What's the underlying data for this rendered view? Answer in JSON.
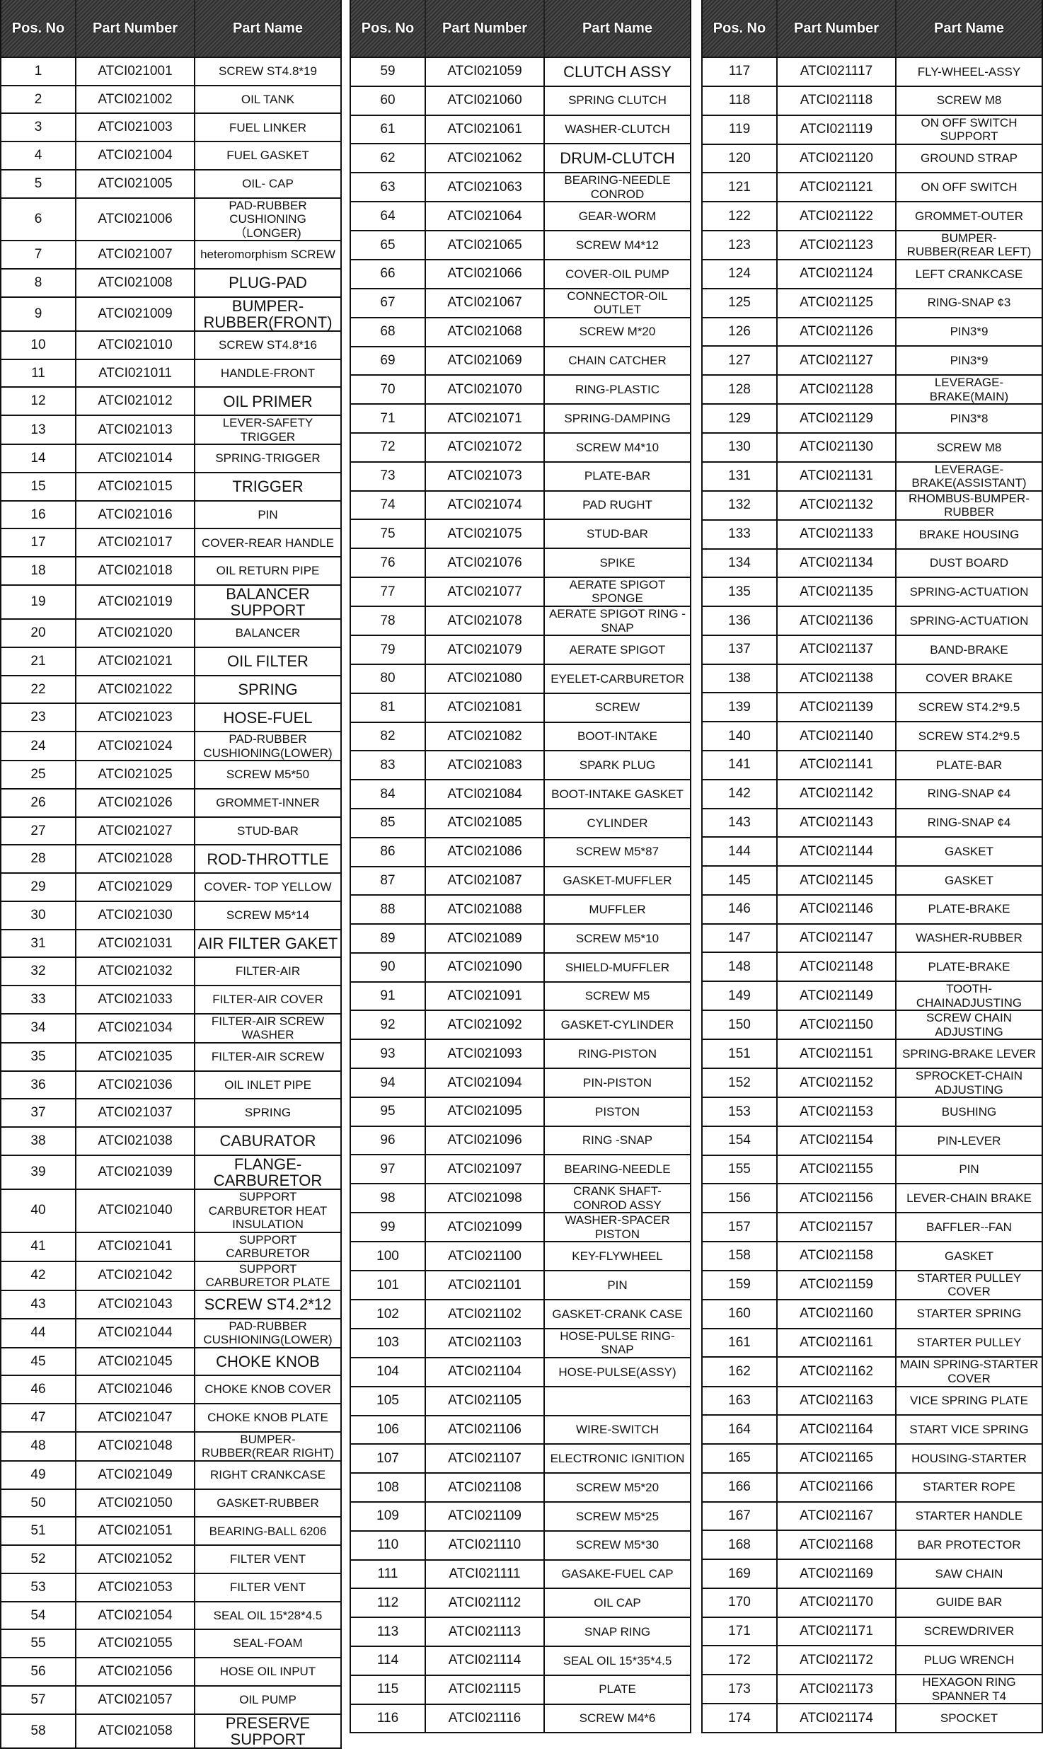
{
  "headers": {
    "pos": "Pos. No",
    "number": "Part Number",
    "name": "Part Name"
  },
  "tables": [
    {
      "rows": [
        [
          "1",
          "ATCI021001",
          "SCREW ST4.8*19"
        ],
        [
          "2",
          "ATCI021002",
          "OIL TANK"
        ],
        [
          "3",
          "ATCI021003",
          "FUEL LINKER"
        ],
        [
          "4",
          "ATCI021004",
          "FUEL GASKET"
        ],
        [
          "5",
          "ATCI021005",
          "OIL- CAP"
        ],
        [
          "6",
          "ATCI021006",
          "PAD-RUBBER CUSHIONING（LONGER)"
        ],
        [
          "7",
          "ATCI021007",
          "heteromorphism SCREW"
        ],
        [
          "8",
          "ATCI021008",
          "PLUG-PAD"
        ],
        [
          "9",
          "ATCI021009",
          "BUMPER-RUBBER(FRONT)"
        ],
        [
          "10",
          "ATCI021010",
          "SCREW ST4.8*16"
        ],
        [
          "11",
          "ATCI021011",
          "HANDLE-FRONT"
        ],
        [
          "12",
          "ATCI021012",
          "OIL PRIMER"
        ],
        [
          "13",
          "ATCI021013",
          "LEVER-SAFETY TRIGGER"
        ],
        [
          "14",
          "ATCI021014",
          "SPRING-TRIGGER"
        ],
        [
          "15",
          "ATCI021015",
          "TRIGGER"
        ],
        [
          "16",
          "ATCI021016",
          "PIN"
        ],
        [
          "17",
          "ATCI021017",
          "COVER-REAR HANDLE"
        ],
        [
          "18",
          "ATCI021018",
          "OIL RETURN PIPE"
        ],
        [
          "19",
          "ATCI021019",
          "BALANCER SUPPORT"
        ],
        [
          "20",
          "ATCI021020",
          "BALANCER"
        ],
        [
          "21",
          "ATCI021021",
          "OIL FILTER"
        ],
        [
          "22",
          "ATCI021022",
          "SPRING"
        ],
        [
          "23",
          "ATCI021023",
          "HOSE-FUEL"
        ],
        [
          "24",
          "ATCI021024",
          "PAD-RUBBER CUSHIONING(LOWER)"
        ],
        [
          "25",
          "ATCI021025",
          "SCREW M5*50"
        ],
        [
          "26",
          "ATCI021026",
          "GROMMET-INNER"
        ],
        [
          "27",
          "ATCI021027",
          "STUD-BAR"
        ],
        [
          "28",
          "ATCI021028",
          "ROD-THROTTLE"
        ],
        [
          "29",
          "ATCI021029",
          "COVER- TOP YELLOW"
        ],
        [
          "30",
          "ATCI021030",
          "SCREW M5*14"
        ],
        [
          "31",
          "ATCI021031",
          "AIR FILTER GAKET"
        ],
        [
          "32",
          "ATCI021032",
          "FILTER-AIR"
        ],
        [
          "33",
          "ATCI021033",
          "FILTER-AIR COVER"
        ],
        [
          "34",
          "ATCI021034",
          "FILTER-AIR SCREW WASHER"
        ],
        [
          "35",
          "ATCI021035",
          "FILTER-AIR SCREW"
        ],
        [
          "36",
          "ATCI021036",
          "OIL INLET PIPE"
        ],
        [
          "37",
          "ATCI021037",
          "SPRING"
        ],
        [
          "38",
          "ATCI021038",
          "CABURATOR"
        ],
        [
          "39",
          "ATCI021039",
          "FLANGE-CARBURETOR"
        ],
        [
          "40",
          "ATCI021040",
          "SUPPORT CARBURETOR HEAT INSULATION"
        ],
        [
          "41",
          "ATCI021041",
          "SUPPORT CARBURETOR"
        ],
        [
          "42",
          "ATCI021042",
          "SUPPORT CARBURETOR PLATE"
        ],
        [
          "43",
          "ATCI021043",
          "SCREW ST4.2*12"
        ],
        [
          "44",
          "ATCI021044",
          "PAD-RUBBER CUSHIONING(LOWER)"
        ],
        [
          "45",
          "ATCI021045",
          "CHOKE KNOB"
        ],
        [
          "46",
          "ATCI021046",
          "CHOKE KNOB COVER"
        ],
        [
          "47",
          "ATCI021047",
          "CHOKE KNOB PLATE"
        ],
        [
          "48",
          "ATCI021048",
          "BUMPER-RUBBER(REAR RIGHT)"
        ],
        [
          "49",
          "ATCI021049",
          "RIGHT CRANKCASE"
        ],
        [
          "50",
          "ATCI021050",
          "GASKET-RUBBER"
        ],
        [
          "51",
          "ATCI021051",
          "BEARING-BALL 6206"
        ],
        [
          "52",
          "ATCI021052",
          "FILTER VENT"
        ],
        [
          "53",
          "ATCI021053",
          "FILTER VENT"
        ],
        [
          "54",
          "ATCI021054",
          "SEAL OIL 15*28*4.5"
        ],
        [
          "55",
          "ATCI021055",
          "SEAL-FOAM"
        ],
        [
          "56",
          "ATCI021056",
          "HOSE OIL INPUT"
        ],
        [
          "57",
          "ATCI021057",
          "OIL PUMP"
        ],
        [
          "58",
          "ATCI021058",
          "PRESERVE SUPPORT"
        ]
      ]
    },
    {
      "rows": [
        [
          "59",
          "ATCI021059",
          "CLUTCH ASSY"
        ],
        [
          "60",
          "ATCI021060",
          "SPRING CLUTCH"
        ],
        [
          "61",
          "ATCI021061",
          "WASHER-CLUTCH"
        ],
        [
          "62",
          "ATCI021062",
          "DRUM-CLUTCH"
        ],
        [
          "63",
          "ATCI021063",
          "BEARING-NEEDLE CONROD"
        ],
        [
          "64",
          "ATCI021064",
          "GEAR-WORM"
        ],
        [
          "65",
          "ATCI021065",
          "SCREW M4*12"
        ],
        [
          "66",
          "ATCI021066",
          "COVER-OIL PUMP"
        ],
        [
          "67",
          "ATCI021067",
          "CONNECTOR-OIL OUTLET"
        ],
        [
          "68",
          "ATCI021068",
          "SCREW M*20"
        ],
        [
          "69",
          "ATCI021069",
          "CHAIN CATCHER"
        ],
        [
          "70",
          "ATCI021070",
          "RING-PLASTIC"
        ],
        [
          "71",
          "ATCI021071",
          "SPRING-DAMPING"
        ],
        [
          "72",
          "ATCI021072",
          "SCREW M4*10"
        ],
        [
          "73",
          "ATCI021073",
          "PLATE-BAR"
        ],
        [
          "74",
          "ATCI021074",
          "PAD RUGHT"
        ],
        [
          "75",
          "ATCI021075",
          "STUD-BAR"
        ],
        [
          "76",
          "ATCI021076",
          "SPIKE"
        ],
        [
          "77",
          "ATCI021077",
          "AERATE SPIGOT SPONGE"
        ],
        [
          "78",
          "ATCI021078",
          "AERATE SPIGOT RING -SNAP"
        ],
        [
          "79",
          "ATCI021079",
          "AERATE SPIGOT"
        ],
        [
          "80",
          "ATCI021080",
          "EYELET-CARBURETOR"
        ],
        [
          "81",
          "ATCI021081",
          "SCREW"
        ],
        [
          "82",
          "ATCI021082",
          "BOOT-INTAKE"
        ],
        [
          "83",
          "ATCI021083",
          "SPARK PLUG"
        ],
        [
          "84",
          "ATCI021084",
          "BOOT-INTAKE GASKET"
        ],
        [
          "85",
          "ATCI021085",
          "CYLINDER"
        ],
        [
          "86",
          "ATCI021086",
          "SCREW M5*87"
        ],
        [
          "87",
          "ATCI021087",
          "GASKET-MUFFLER"
        ],
        [
          "88",
          "ATCI021088",
          "MUFFLER"
        ],
        [
          "89",
          "ATCI021089",
          "SCREW M5*10"
        ],
        [
          "90",
          "ATCI021090",
          "SHIELD-MUFFLER"
        ],
        [
          "91",
          "ATCI021091",
          "SCREW M5"
        ],
        [
          "92",
          "ATCI021092",
          "GASKET-CYLINDER"
        ],
        [
          "93",
          "ATCI021093",
          "RING-PISTON"
        ],
        [
          "94",
          "ATCI021094",
          "PIN-PISTON"
        ],
        [
          "95",
          "ATCI021095",
          "PISTON"
        ],
        [
          "96",
          "ATCI021096",
          "RING -SNAP"
        ],
        [
          "97",
          "ATCI021097",
          "BEARING-NEEDLE"
        ],
        [
          "98",
          "ATCI021098",
          "CRANK SHAFT-CONROD ASSY"
        ],
        [
          "99",
          "ATCI021099",
          "WASHER-SPACER PISTON"
        ],
        [
          "100",
          "ATCI021100",
          "KEY-FLYWHEEL"
        ],
        [
          "101",
          "ATCI021101",
          "PIN"
        ],
        [
          "102",
          "ATCI021102",
          "GASKET-CRANK CASE"
        ],
        [
          "103",
          "ATCI021103",
          "HOSE-PULSE RING-SNAP"
        ],
        [
          "104",
          "ATCI021104",
          "HOSE-PULSE(ASSY)"
        ],
        [
          "105",
          "ATCI021105",
          ""
        ],
        [
          "106",
          "ATCI021106",
          "WIRE-SWITCH"
        ],
        [
          "107",
          "ATCI021107",
          "ELECTRONIC IGNITION"
        ],
        [
          "108",
          "ATCI021108",
          "SCREW M5*20"
        ],
        [
          "109",
          "ATCI021109",
          "SCREW M5*25"
        ],
        [
          "110",
          "ATCI021110",
          "SCREW M5*30"
        ],
        [
          "111",
          "ATCI021111",
          "GASAKE-FUEL CAP"
        ],
        [
          "112",
          "ATCI021112",
          "OIL CAP"
        ],
        [
          "113",
          "ATCI021113",
          "SNAP RING"
        ],
        [
          "114",
          "ATCI021114",
          "SEAL OIL 15*35*4.5"
        ],
        [
          "115",
          "ATCI021115",
          "PLATE"
        ],
        [
          "116",
          "ATCI021116",
          "SCREW M4*6"
        ]
      ]
    },
    {
      "rows": [
        [
          "117",
          "ATCI021117",
          "FLY-WHEEL-ASSY"
        ],
        [
          "118",
          "ATCI021118",
          "SCREW M8"
        ],
        [
          "119",
          "ATCI021119",
          "ON OFF SWITCH SUPPORT"
        ],
        [
          "120",
          "ATCI021120",
          "GROUND STRAP"
        ],
        [
          "121",
          "ATCI021121",
          "ON OFF SWITCH"
        ],
        [
          "122",
          "ATCI021122",
          "GROMMET-OUTER"
        ],
        [
          "123",
          "ATCI021123",
          "BUMPER-RUBBER(REAR LEFT)"
        ],
        [
          "124",
          "ATCI021124",
          "LEFT CRANKCASE"
        ],
        [
          "125",
          "ATCI021125",
          "RING-SNAP ¢3"
        ],
        [
          "126",
          "ATCI021126",
          "PIN3*9"
        ],
        [
          "127",
          "ATCI021127",
          "PIN3*9"
        ],
        [
          "128",
          "ATCI021128",
          "LEVERAGE-BRAKE(MAIN)"
        ],
        [
          "129",
          "ATCI021129",
          "PIN3*8"
        ],
        [
          "130",
          "ATCI021130",
          "SCREW M8"
        ],
        [
          "131",
          "ATCI021131",
          "LEVERAGE-BRAKE(ASSISTANT)"
        ],
        [
          "132",
          "ATCI021132",
          "RHOMBUS-BUMPER-RUBBER"
        ],
        [
          "133",
          "ATCI021133",
          "BRAKE HOUSING"
        ],
        [
          "134",
          "ATCI021134",
          "DUST BOARD"
        ],
        [
          "135",
          "ATCI021135",
          "SPRING-ACTUATION"
        ],
        [
          "136",
          "ATCI021136",
          "SPRING-ACTUATION"
        ],
        [
          "137",
          "ATCI021137",
          "BAND-BRAKE"
        ],
        [
          "138",
          "ATCI021138",
          "COVER BRAKE"
        ],
        [
          "139",
          "ATCI021139",
          "SCREW ST4.2*9.5"
        ],
        [
          "140",
          "ATCI021140",
          "SCREW ST4.2*9.5"
        ],
        [
          "141",
          "ATCI021141",
          "PLATE-BAR"
        ],
        [
          "142",
          "ATCI021142",
          "RING-SNAP ¢4"
        ],
        [
          "143",
          "ATCI021143",
          "RING-SNAP ¢4"
        ],
        [
          "144",
          "ATCI021144",
          "GASKET"
        ],
        [
          "145",
          "ATCI021145",
          "GASKET"
        ],
        [
          "146",
          "ATCI021146",
          "PLATE-BRAKE"
        ],
        [
          "147",
          "ATCI021147",
          "WASHER-RUBBER"
        ],
        [
          "148",
          "ATCI021148",
          "PLATE-BRAKE"
        ],
        [
          "149",
          "ATCI021149",
          "TOOTH-CHAINADJUSTING"
        ],
        [
          "150",
          "ATCI021150",
          "SCREW CHAIN ADJUSTING"
        ],
        [
          "151",
          "ATCI021151",
          "SPRING-BRAKE LEVER"
        ],
        [
          "152",
          "ATCI021152",
          "SPROCKET-CHAIN ADJUSTING"
        ],
        [
          "153",
          "ATCI021153",
          "BUSHING"
        ],
        [
          "154",
          "ATCI021154",
          "PIN-LEVER"
        ],
        [
          "155",
          "ATCI021155",
          "PIN"
        ],
        [
          "156",
          "ATCI021156",
          "LEVER-CHAIN BRAKE"
        ],
        [
          "157",
          "ATCI021157",
          "BAFFLER--FAN"
        ],
        [
          "158",
          "ATCI021158",
          "GASKET"
        ],
        [
          "159",
          "ATCI021159",
          "STARTER PULLEY COVER"
        ],
        [
          "160",
          "ATCI021160",
          "STARTER SPRING"
        ],
        [
          "161",
          "ATCI021161",
          "STARTER PULLEY"
        ],
        [
          "162",
          "ATCI021162",
          "MAIN SPRING-STARTER COVER"
        ],
        [
          "163",
          "ATCI021163",
          "VICE SPRING PLATE"
        ],
        [
          "164",
          "ATCI021164",
          "START VICE SPRING"
        ],
        [
          "165",
          "ATCI021165",
          "HOUSING-STARTER"
        ],
        [
          "166",
          "ATCI021166",
          "STARTER ROPE"
        ],
        [
          "167",
          "ATCI021167",
          "STARTER HANDLE"
        ],
        [
          "168",
          "ATCI021168",
          "BAR PROTECTOR"
        ],
        [
          "169",
          "ATCI021169",
          "SAW CHAIN"
        ],
        [
          "170",
          "ATCI021170",
          "GUIDE BAR"
        ],
        [
          "171",
          "ATCI021171",
          "SCREWDRIVER"
        ],
        [
          "172",
          "ATCI021172",
          "PLUG WRENCH"
        ],
        [
          "173",
          "ATCI021173",
          "HEXAGON RING SPANNER T4"
        ],
        [
          "174",
          "ATCI021174",
          "SPOCKET"
        ]
      ]
    }
  ]
}
